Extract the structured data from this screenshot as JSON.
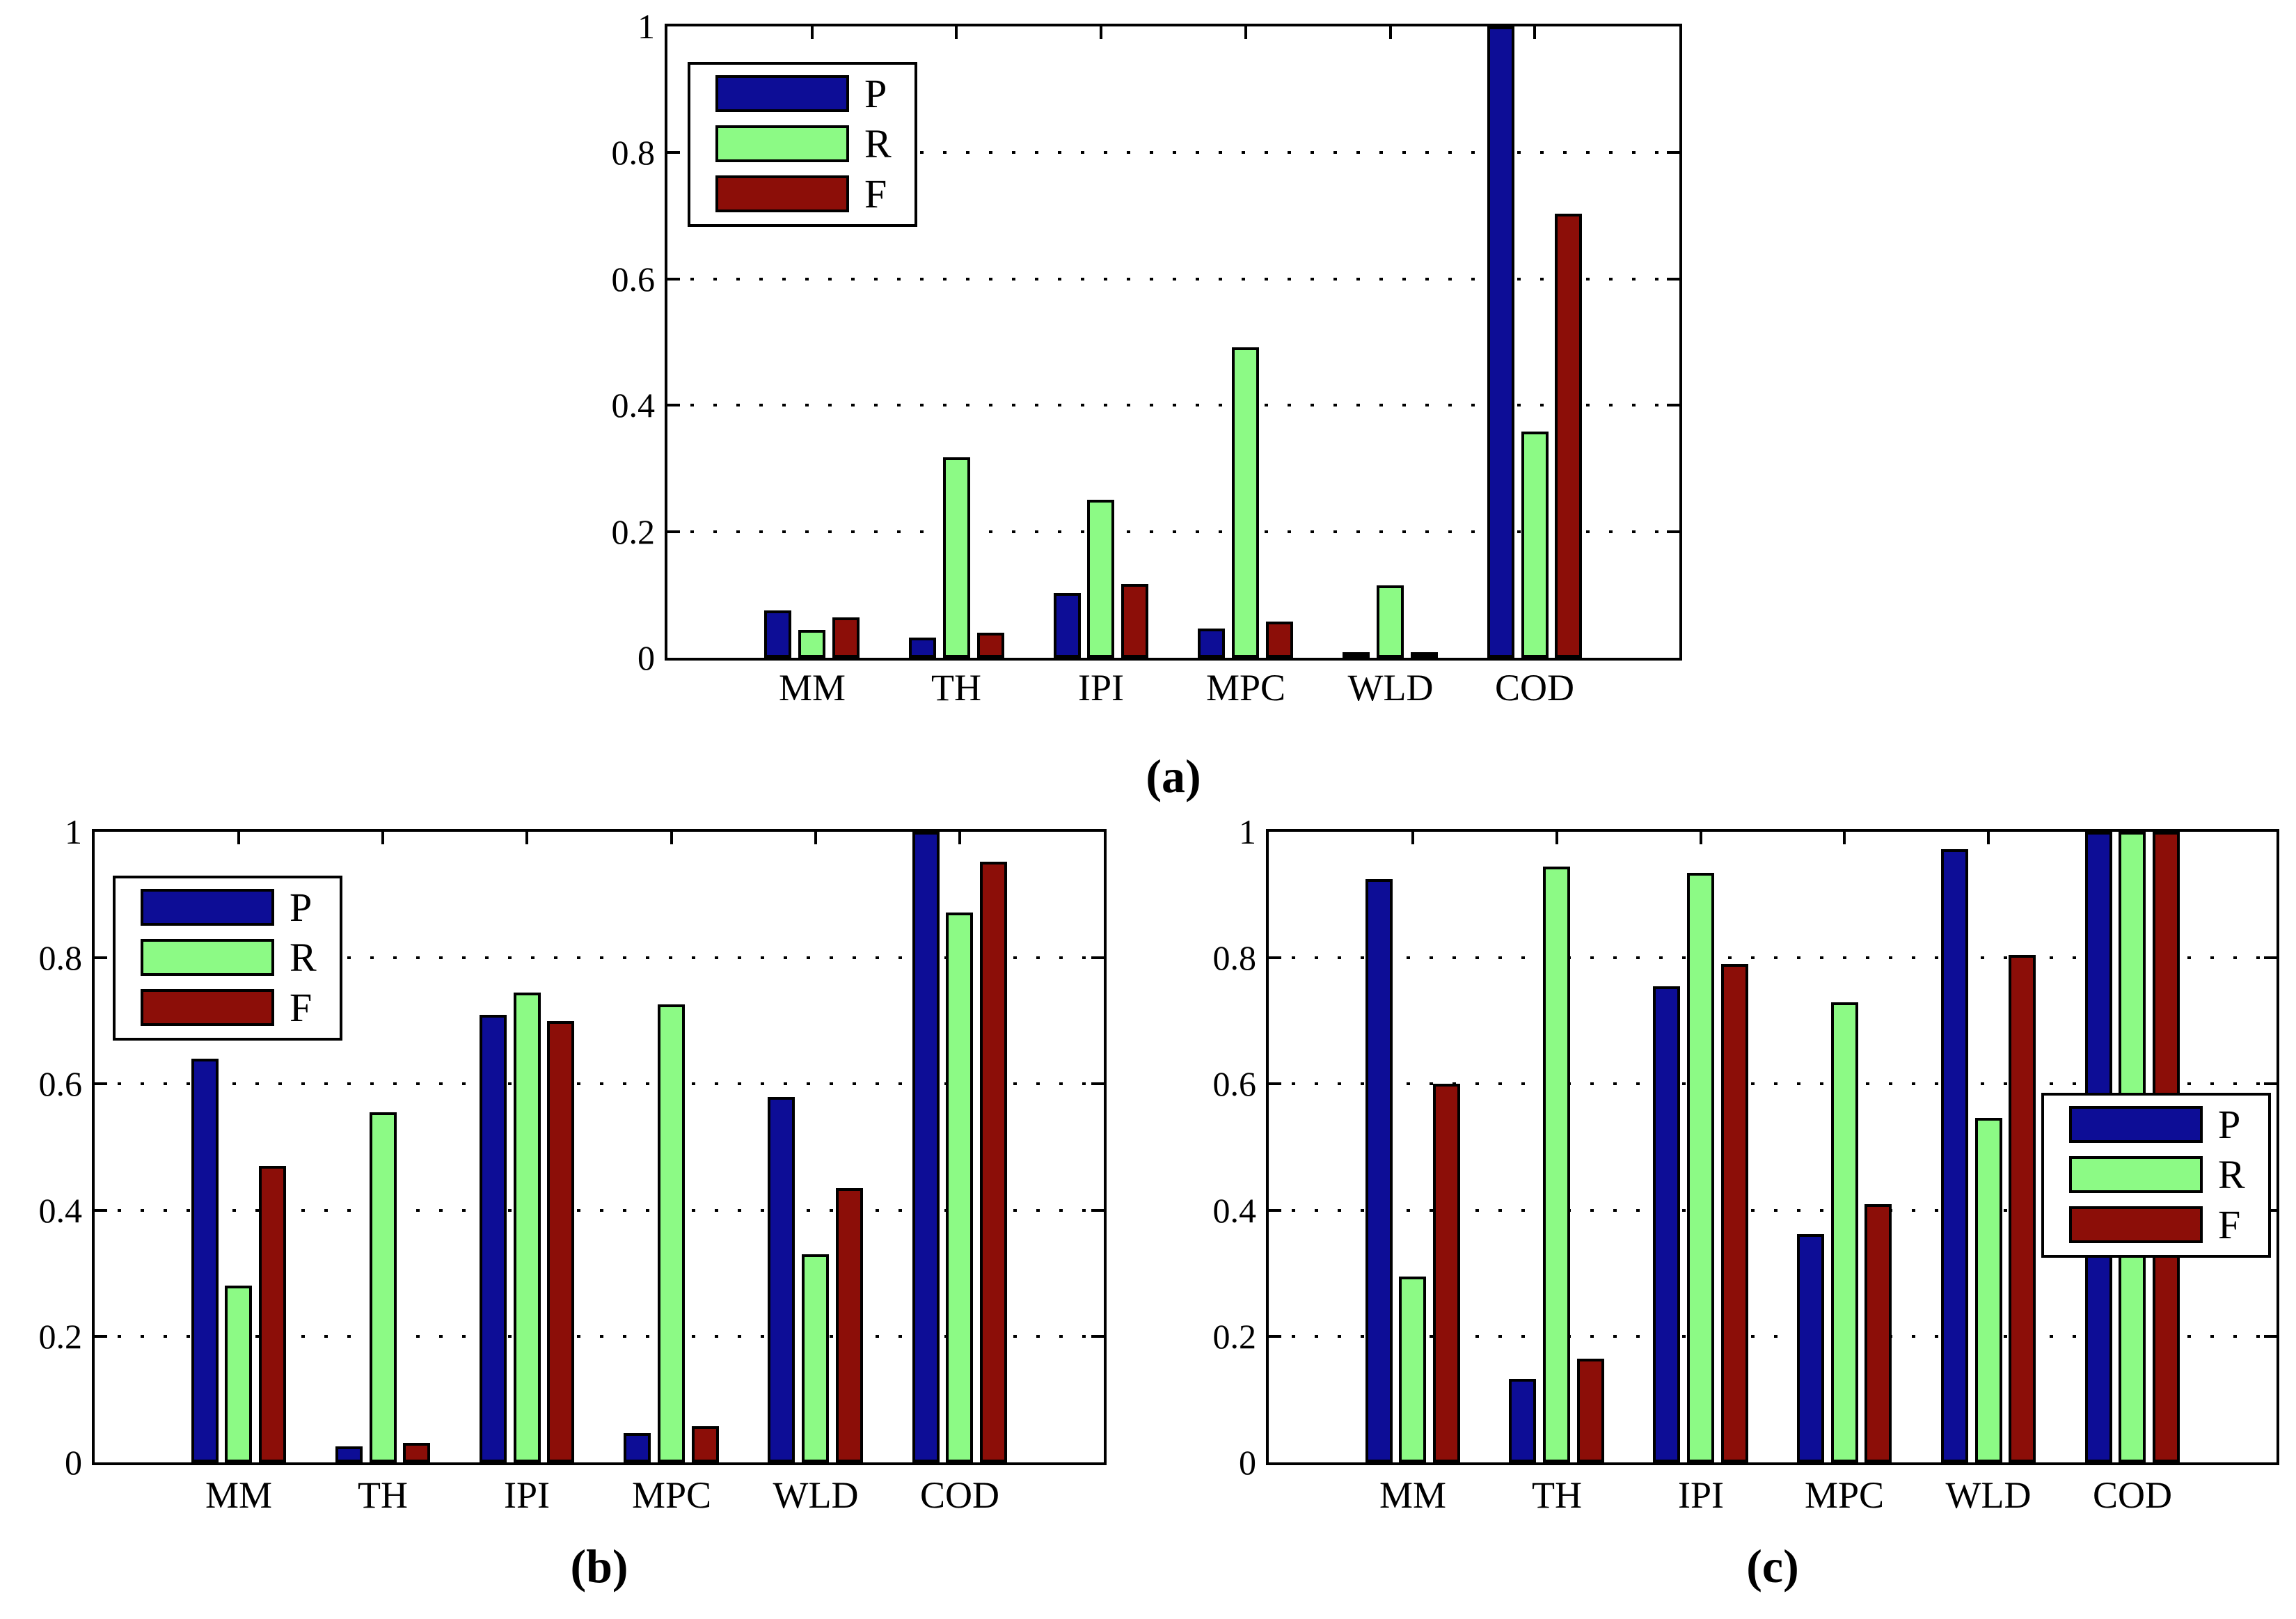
{
  "figure": {
    "background": "#ffffff",
    "axis_color": "#000000"
  },
  "colors": {
    "P": "#0D0D96",
    "R": "#8CFA85",
    "F": "#8C0E08"
  },
  "legend": {
    "labels": [
      "P",
      "R",
      "F"
    ]
  },
  "axes": {
    "ylim": [
      0,
      1
    ],
    "yticks": [
      0,
      0.2,
      0.4,
      0.6,
      0.8,
      1
    ],
    "ytick_labels": [
      "0",
      "0.2",
      "0.4",
      "0.6",
      "0.8",
      "1"
    ],
    "grid": "horizontal dotted at 0.2, 0.4, 0.6, 0.8",
    "xlabel": "",
    "ylabel": ""
  },
  "chart_data": [
    {
      "id": "a",
      "type": "bar",
      "caption": "(a)",
      "legend_position": "top-left",
      "categories": [
        "MM",
        "TH",
        "IPI",
        "MPC",
        "WLD",
        "COD"
      ],
      "ylim": [
        0,
        1
      ],
      "series": [
        {
          "name": "P",
          "color": "#0D0D96",
          "values": [
            0.075,
            0.032,
            0.102,
            0.046,
            0.008,
            1.0
          ]
        },
        {
          "name": "R",
          "color": "#8CFA85",
          "values": [
            0.044,
            0.318,
            0.25,
            0.492,
            0.115,
            0.358
          ]
        },
        {
          "name": "F",
          "color": "#8C0E08",
          "values": [
            0.064,
            0.04,
            0.117,
            0.057,
            0.008,
            0.703
          ]
        }
      ]
    },
    {
      "id": "b",
      "type": "bar",
      "caption": "(b)",
      "legend_position": "top-left",
      "categories": [
        "MM",
        "TH",
        "IPI",
        "MPC",
        "WLD",
        "COD"
      ],
      "ylim": [
        0,
        1
      ],
      "series": [
        {
          "name": "P",
          "color": "#0D0D96",
          "values": [
            0.64,
            0.025,
            0.71,
            0.046,
            0.58,
            1.0
          ]
        },
        {
          "name": "R",
          "color": "#8CFA85",
          "values": [
            0.28,
            0.555,
            0.745,
            0.726,
            0.33,
            0.872
          ]
        },
        {
          "name": "F",
          "color": "#8C0E08",
          "values": [
            0.47,
            0.031,
            0.7,
            0.057,
            0.435,
            0.952
          ]
        }
      ]
    },
    {
      "id": "c",
      "type": "bar",
      "caption": "(c)",
      "legend_position": "middle-right",
      "categories": [
        "MM",
        "TH",
        "IPI",
        "MPC",
        "WLD",
        "COD"
      ],
      "ylim": [
        0,
        1
      ],
      "series": [
        {
          "name": "P",
          "color": "#0D0D96",
          "values": [
            0.925,
            0.132,
            0.755,
            0.362,
            0.972,
            1.0
          ]
        },
        {
          "name": "R",
          "color": "#8CFA85",
          "values": [
            0.295,
            0.945,
            0.935,
            0.73,
            0.546,
            1.0
          ]
        },
        {
          "name": "F",
          "color": "#8C0E08",
          "values": [
            0.6,
            0.165,
            0.79,
            0.41,
            0.805,
            1.0
          ]
        }
      ]
    }
  ]
}
